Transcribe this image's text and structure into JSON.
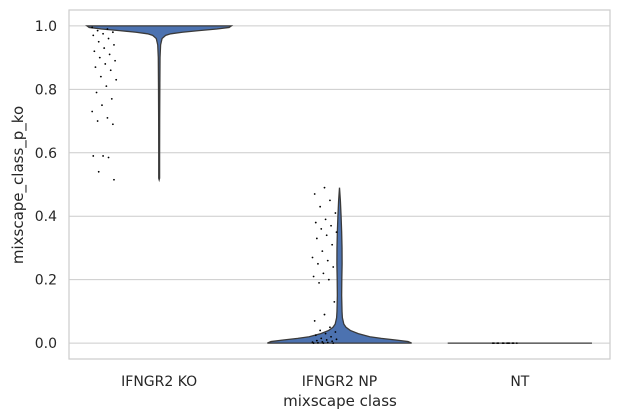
{
  "chart_data": {
    "type": "violin",
    "xlabel": "mixscape class",
    "ylabel": "mixscape_class_p_ko",
    "ylim": [
      -0.05,
      1.05
    ],
    "yticks": [
      0.0,
      0.2,
      0.4,
      0.6,
      0.8,
      1.0
    ],
    "ytick_labels": [
      "0.0",
      "0.2",
      "0.4",
      "0.6",
      "0.8",
      "1.0"
    ],
    "categories": [
      "IFNGR2 KO",
      "IFNGR2 NP",
      "NT"
    ],
    "grid": "horizontal",
    "colors": {
      "violin": "#4c72b0",
      "outline": "#3a3a3a",
      "points": "#000000",
      "grid": "#cccccc",
      "spine": "#cccccc"
    },
    "series": [
      {
        "category": "IFNGR2 KO",
        "min": 0.515,
        "max": 1.0,
        "density_profile": [
          [
            1.0,
            1.0
          ],
          [
            0.995,
            0.97
          ],
          [
            0.99,
            0.8
          ],
          [
            0.985,
            0.55
          ],
          [
            0.98,
            0.32
          ],
          [
            0.975,
            0.16
          ],
          [
            0.97,
            0.09
          ],
          [
            0.96,
            0.04
          ],
          [
            0.94,
            0.02
          ],
          [
            0.9,
            0.012
          ],
          [
            0.8,
            0.009
          ],
          [
            0.7,
            0.007
          ],
          [
            0.6,
            0.006
          ],
          [
            0.52,
            0.006
          ],
          [
            0.515,
            0.0
          ]
        ],
        "points": [
          0.995,
          0.99,
          0.985,
          0.98,
          0.975,
          0.97,
          0.96,
          0.95,
          0.94,
          0.93,
          0.92,
          0.91,
          0.9,
          0.89,
          0.88,
          0.87,
          0.86,
          0.84,
          0.83,
          0.81,
          0.79,
          0.77,
          0.75,
          0.73,
          0.71,
          0.7,
          0.69,
          0.59,
          0.59,
          0.585,
          0.54,
          0.515
        ]
      },
      {
        "category": "IFNGR2 NP",
        "min": 0.0,
        "max": 0.49,
        "density_profile": [
          [
            0.0,
            1.0
          ],
          [
            0.005,
            0.95
          ],
          [
            0.01,
            0.78
          ],
          [
            0.015,
            0.58
          ],
          [
            0.02,
            0.42
          ],
          [
            0.03,
            0.26
          ],
          [
            0.04,
            0.15
          ],
          [
            0.05,
            0.09
          ],
          [
            0.06,
            0.06
          ],
          [
            0.08,
            0.04
          ],
          [
            0.1,
            0.035
          ],
          [
            0.15,
            0.03
          ],
          [
            0.2,
            0.032
          ],
          [
            0.25,
            0.036
          ],
          [
            0.3,
            0.035
          ],
          [
            0.35,
            0.03
          ],
          [
            0.4,
            0.022
          ],
          [
            0.45,
            0.012
          ],
          [
            0.49,
            0.0
          ]
        ],
        "points": [
          0.49,
          0.47,
          0.45,
          0.43,
          0.41,
          0.39,
          0.38,
          0.37,
          0.36,
          0.35,
          0.34,
          0.33,
          0.31,
          0.29,
          0.27,
          0.26,
          0.25,
          0.24,
          0.22,
          0.21,
          0.2,
          0.19,
          0.13,
          0.09,
          0.07,
          0.05,
          0.04,
          0.035,
          0.03,
          0.025,
          0.02,
          0.015,
          0.012,
          0.01,
          0.008,
          0.006,
          0.004,
          0.003,
          0.002,
          0.001,
          0.0,
          0.0,
          0.0
        ]
      },
      {
        "category": "NT",
        "min": 0.0,
        "max": 0.0,
        "density_profile": [],
        "points": [
          0.0,
          0.0,
          0.0,
          0.0,
          0.0,
          0.0,
          0.0,
          0.0,
          0.0,
          0.0,
          0.0,
          0.0
        ]
      }
    ]
  }
}
